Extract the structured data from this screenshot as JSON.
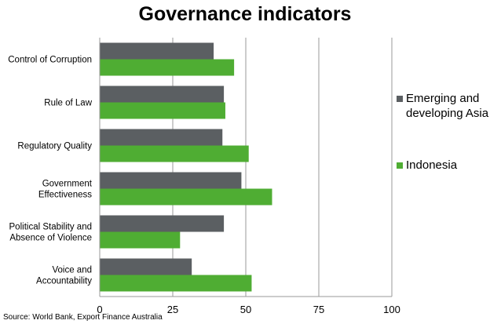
{
  "chart_data": {
    "type": "bar",
    "orientation": "horizontal",
    "title": "Governance indicators",
    "categories": [
      [
        "Control of Corruption"
      ],
      [
        "Rule of Law"
      ],
      [
        "Regulatory Quality"
      ],
      [
        "Government",
        "Effectiveness"
      ],
      [
        "Political Stability and",
        "Absence of Violence"
      ],
      [
        "Voice and",
        "Accountability"
      ]
    ],
    "series": [
      {
        "name": "Emerging and developing Asia",
        "legend_lines": [
          "Emerging and",
          "developing Asia"
        ],
        "color": "#5b5f62",
        "values": [
          39,
          42.5,
          42,
          48.5,
          42.5,
          31.5
        ]
      },
      {
        "name": "Indonesia",
        "legend_lines": [
          "Indonesia"
        ],
        "color": "#4fad33",
        "values": [
          46,
          43,
          51,
          59,
          27.5,
          52
        ]
      }
    ],
    "xlim": [
      0,
      100
    ],
    "xticks": [
      "0",
      "25",
      "50",
      "75",
      "100"
    ],
    "grid": true,
    "legend_position": "right",
    "source": "Source: World Bank, Export Finance Australia"
  }
}
